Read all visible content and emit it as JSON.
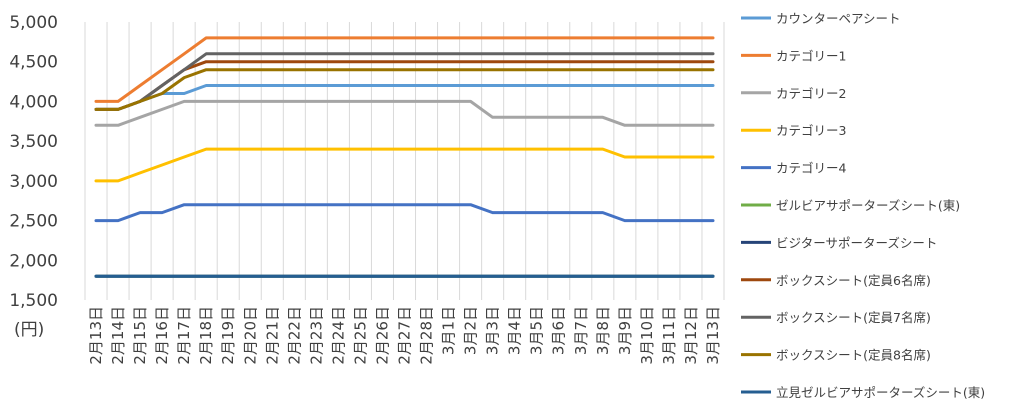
{
  "chart_data": {
    "type": "line",
    "unit_label": "(円)",
    "yticks": [
      "5,000",
      "4,500",
      "4,000",
      "3,500",
      "3,000",
      "2,500",
      "2,000",
      "1,500"
    ],
    "ylim": [
      1500,
      5000
    ],
    "grid": "vertical",
    "legend_position": "right",
    "categories": [
      "2月13日",
      "2月14日",
      "2月15日",
      "2月16日",
      "2月17日",
      "2月18日",
      "2月19日",
      "2月20日",
      "2月21日",
      "2月22日",
      "2月23日",
      "2月24日",
      "2月25日",
      "2月26日",
      "2月27日",
      "2月28日",
      "3月1日",
      "3月2日",
      "3月3日",
      "3月4日",
      "3月5日",
      "3月6日",
      "3月7日",
      "3月8日",
      "3月9日",
      "3月10日",
      "3月11日",
      "3月12日",
      "3月13日"
    ],
    "series": [
      {
        "name": "カウンターペアシート",
        "color": "#5b9bd5",
        "values": [
          3900,
          3900,
          4000,
          4100,
          4100,
          4200,
          4200,
          4200,
          4200,
          4200,
          4200,
          4200,
          4200,
          4200,
          4200,
          4200,
          4200,
          4200,
          4200,
          4200,
          4200,
          4200,
          4200,
          4200,
          4200,
          4200,
          4200,
          4200,
          4200
        ]
      },
      {
        "name": "カテゴリー1",
        "color": "#ed7d31",
        "values": [
          4000,
          4000,
          4200,
          4400,
          4600,
          4800,
          4800,
          4800,
          4800,
          4800,
          4800,
          4800,
          4800,
          4800,
          4800,
          4800,
          4800,
          4800,
          4800,
          4800,
          4800,
          4800,
          4800,
          4800,
          4800,
          4800,
          4800,
          4800,
          4800
        ]
      },
      {
        "name": "カテゴリー2",
        "color": "#a5a5a5",
        "values": [
          3700,
          3700,
          3800,
          3900,
          4000,
          4000,
          4000,
          4000,
          4000,
          4000,
          4000,
          4000,
          4000,
          4000,
          4000,
          4000,
          4000,
          4000,
          3800,
          3800,
          3800,
          3800,
          3800,
          3800,
          3700,
          3700,
          3700,
          3700,
          3700
        ]
      },
      {
        "name": "カテゴリー3",
        "color": "#ffc000",
        "values": [
          3000,
          3000,
          3100,
          3200,
          3300,
          3400,
          3400,
          3400,
          3400,
          3400,
          3400,
          3400,
          3400,
          3400,
          3400,
          3400,
          3400,
          3400,
          3400,
          3400,
          3400,
          3400,
          3400,
          3400,
          3300,
          3300,
          3300,
          3300,
          3300
        ]
      },
      {
        "name": "カテゴリー4",
        "color": "#4472c4",
        "values": [
          2500,
          2500,
          2600,
          2600,
          2700,
          2700,
          2700,
          2700,
          2700,
          2700,
          2700,
          2700,
          2700,
          2700,
          2700,
          2700,
          2700,
          2700,
          2600,
          2600,
          2600,
          2600,
          2600,
          2600,
          2500,
          2500,
          2500,
          2500,
          2500
        ]
      },
      {
        "name": "ゼルビアサポーターズシート(東)",
        "color": "#70ad47",
        "values": [
          1800,
          1800,
          1800,
          1800,
          1800,
          1800,
          1800,
          1800,
          1800,
          1800,
          1800,
          1800,
          1800,
          1800,
          1800,
          1800,
          1800,
          1800,
          1800,
          1800,
          1800,
          1800,
          1800,
          1800,
          1800,
          1800,
          1800,
          1800,
          1800
        ]
      },
      {
        "name": "ビジターサポーターズシート",
        "color": "#264478",
        "values": [
          1800,
          1800,
          1800,
          1800,
          1800,
          1800,
          1800,
          1800,
          1800,
          1800,
          1800,
          1800,
          1800,
          1800,
          1800,
          1800,
          1800,
          1800,
          1800,
          1800,
          1800,
          1800,
          1800,
          1800,
          1800,
          1800,
          1800,
          1800,
          1800
        ]
      },
      {
        "name": "ボックスシート(定員6名席)",
        "color": "#9e480e",
        "values": [
          3900,
          3900,
          4000,
          4200,
          4400,
          4500,
          4500,
          4500,
          4500,
          4500,
          4500,
          4500,
          4500,
          4500,
          4500,
          4500,
          4500,
          4500,
          4500,
          4500,
          4500,
          4500,
          4500,
          4500,
          4500,
          4500,
          4500,
          4500,
          4500
        ]
      },
      {
        "name": "ボックスシート(定員7名席)",
        "color": "#636363",
        "values": [
          3900,
          3900,
          4000,
          4200,
          4400,
          4600,
          4600,
          4600,
          4600,
          4600,
          4600,
          4600,
          4600,
          4600,
          4600,
          4600,
          4600,
          4600,
          4600,
          4600,
          4600,
          4600,
          4600,
          4600,
          4600,
          4600,
          4600,
          4600,
          4600
        ]
      },
      {
        "name": "ボックスシート(定員8名席)",
        "color": "#997300",
        "values": [
          3900,
          3900,
          4000,
          4100,
          4300,
          4400,
          4400,
          4400,
          4400,
          4400,
          4400,
          4400,
          4400,
          4400,
          4400,
          4400,
          4400,
          4400,
          4400,
          4400,
          4400,
          4400,
          4400,
          4400,
          4400,
          4400,
          4400,
          4400,
          4400
        ]
      },
      {
        "name": "立見ゼルビアサポーターズシート(東)",
        "color": "#255e91",
        "values": [
          1800,
          1800,
          1800,
          1800,
          1800,
          1800,
          1800,
          1800,
          1800,
          1800,
          1800,
          1800,
          1800,
          1800,
          1800,
          1800,
          1800,
          1800,
          1800,
          1800,
          1800,
          1800,
          1800,
          1800,
          1800,
          1800,
          1800,
          1800,
          1800
        ]
      }
    ]
  }
}
